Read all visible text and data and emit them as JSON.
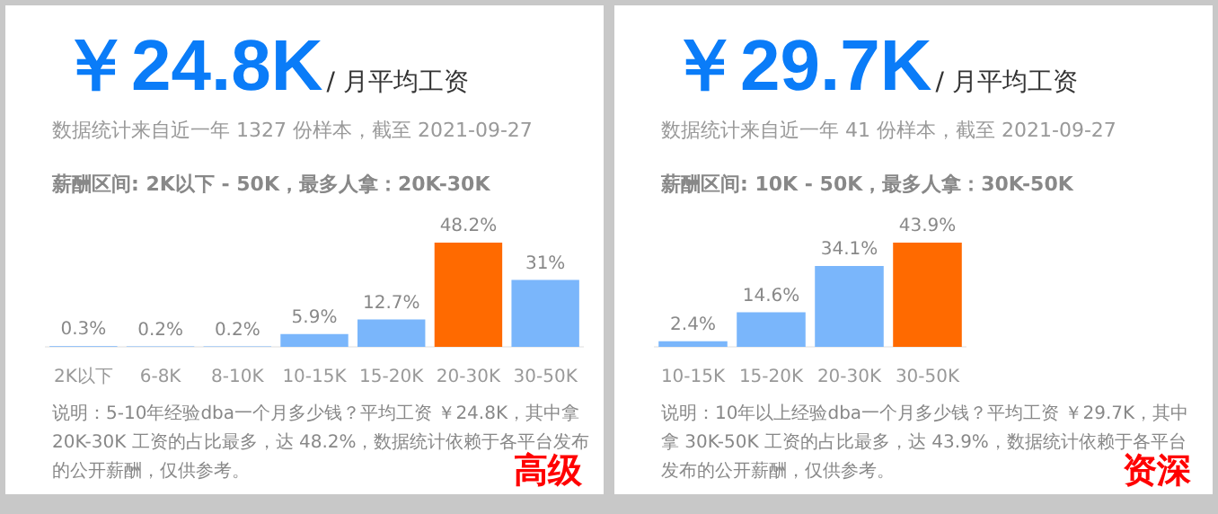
{
  "chart_data": [
    {
      "type": "bar",
      "title": "￥24.8K",
      "subtitle": "/ 月平均工资",
      "categories": [
        "2K以下",
        "6-8K",
        "8-10K",
        "10-15K",
        "15-20K",
        "20-30K",
        "30-50K"
      ],
      "values": [
        0.3,
        0.2,
        0.2,
        5.9,
        12.7,
        48.2,
        31
      ],
      "colors": [
        "#7ab6fb",
        "#7ab6fb",
        "#7ab6fb",
        "#7ab6fb",
        "#7ab6fb",
        "#ff6a00",
        "#7ab6fb"
      ],
      "value_labels": [
        "0.3%",
        "0.2%",
        "0.2%",
        "5.9%",
        "12.7%",
        "48.2%",
        "31%"
      ],
      "annotations": [
        "数据统计来自近一年 1327 份样本，截至 2021-09-27",
        "薪酬区间: 2K以下 - 50K，最多人拿：20K-30K",
        "说明：5-10年经验dba一个月多少钱？平均工资 ￥24.8K，其中拿 20K-30K 工资的占比最多，达 48.2%，数据统计依赖于各平台发布的公开薪酬，仅供参考。",
        "高级"
      ]
    },
    {
      "type": "bar",
      "title": "￥29.7K",
      "subtitle": "/ 月平均工资",
      "categories": [
        "10-15K",
        "15-20K",
        "20-30K",
        "30-50K"
      ],
      "values": [
        2.4,
        14.6,
        34.1,
        43.9
      ],
      "colors": [
        "#7ab6fb",
        "#7ab6fb",
        "#7ab6fb",
        "#ff6a00"
      ],
      "value_labels": [
        "2.4%",
        "14.6%",
        "34.1%",
        "43.9%"
      ],
      "annotations": [
        "数据统计来自近一年 41 份样本，截至 2021-09-27",
        "薪酬区间: 10K - 50K，最多人拿：30K-50K",
        "说明：10年以上经验dba一个月多少钱？平均工资 ￥29.7K，其中拿 30K-50K 工资的占比最多，达 43.9%，数据统计依赖于各平台发布的公开薪酬，仅供参考。",
        "资深"
      ]
    }
  ]
}
